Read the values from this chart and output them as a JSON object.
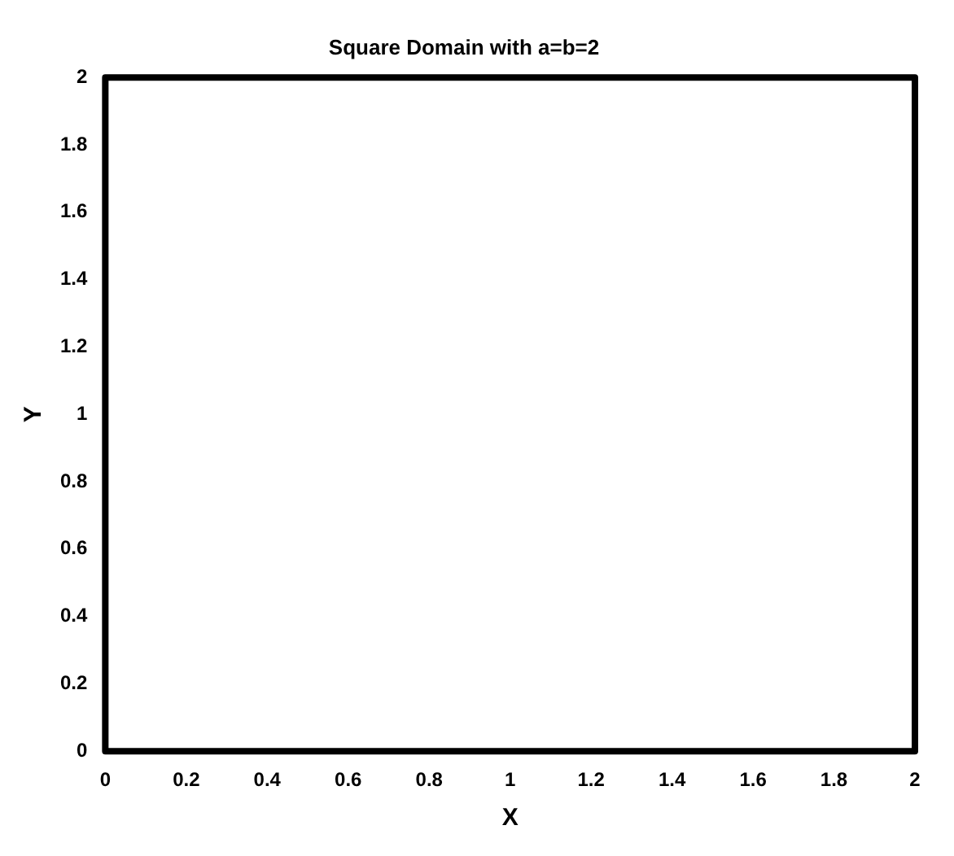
{
  "chart_data": {
    "type": "line",
    "title": "Square Domain with a=b=2",
    "xlabel": "X",
    "ylabel": "Y",
    "xlim": [
      0,
      2
    ],
    "xticks": [
      0,
      0.2,
      0.4,
      0.6,
      0.8,
      1,
      1.2,
      1.4,
      1.6,
      1.8,
      2
    ],
    "ylim": [
      0,
      2
    ],
    "yticks": [
      0,
      0.2,
      0.4,
      0.6,
      0.8,
      1,
      1.2,
      1.4,
      1.6,
      1.8,
      2
    ],
    "grid": false,
    "legend": false
  }
}
